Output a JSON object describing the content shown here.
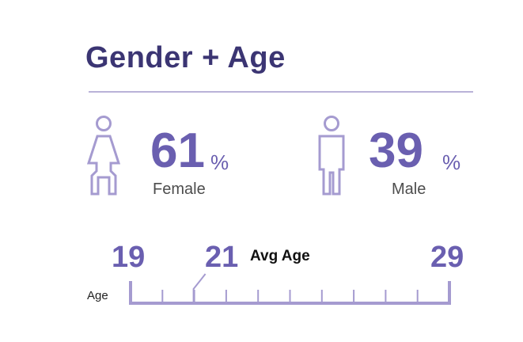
{
  "title": "Gender + Age",
  "colors": {
    "title": "#3b3573",
    "accent": "#6a5fb0",
    "icon": "#a59bd0",
    "divider": "#b9b2d8"
  },
  "chart_data": {
    "type": "infographic",
    "title": "Gender + Age",
    "gender": [
      {
        "name": "Female",
        "value": 61,
        "unit": "%",
        "icon": "female-figure-icon"
      },
      {
        "name": "Male",
        "value": 39,
        "unit": "%",
        "icon": "male-figure-icon"
      }
    ],
    "age": {
      "axis_label": "Age",
      "min": 19,
      "max": 29,
      "avg": 21,
      "avg_label": "Avg Age",
      "min_label": "19",
      "max_label": "29",
      "avg_value_label": "21"
    }
  }
}
